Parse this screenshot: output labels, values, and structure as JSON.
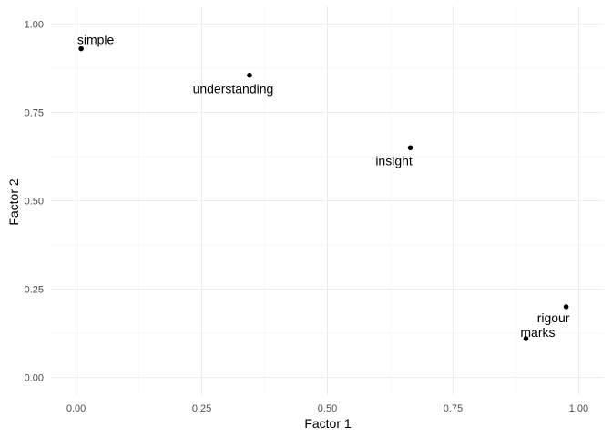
{
  "chart_data": {
    "type": "scatter",
    "title": "",
    "xlabel": "Factor 1",
    "ylabel": "Factor 2",
    "xlim": [
      -0.05,
      1.05
    ],
    "ylim": [
      -0.05,
      1.05
    ],
    "x_ticks": [
      0.0,
      0.25,
      0.5,
      0.75,
      1.0
    ],
    "y_ticks": [
      0.0,
      0.25,
      0.5,
      0.75,
      1.0
    ],
    "x_tick_labels": [
      "0.00",
      "0.25",
      "0.50",
      "0.75",
      "1.00"
    ],
    "y_tick_labels": [
      "0.00",
      "0.25",
      "0.50",
      "0.75",
      "1.00"
    ],
    "grid": true,
    "legend": "none",
    "point_color": "#000000",
    "points": [
      {
        "label": "simple",
        "x": 0.01,
        "y": 0.93
      },
      {
        "label": "understanding",
        "x": 0.345,
        "y": 0.855
      },
      {
        "label": "insight",
        "x": 0.665,
        "y": 0.65
      },
      {
        "label": "rigour",
        "x": 0.975,
        "y": 0.2
      },
      {
        "label": "marks",
        "x": 0.895,
        "y": 0.11
      }
    ]
  }
}
